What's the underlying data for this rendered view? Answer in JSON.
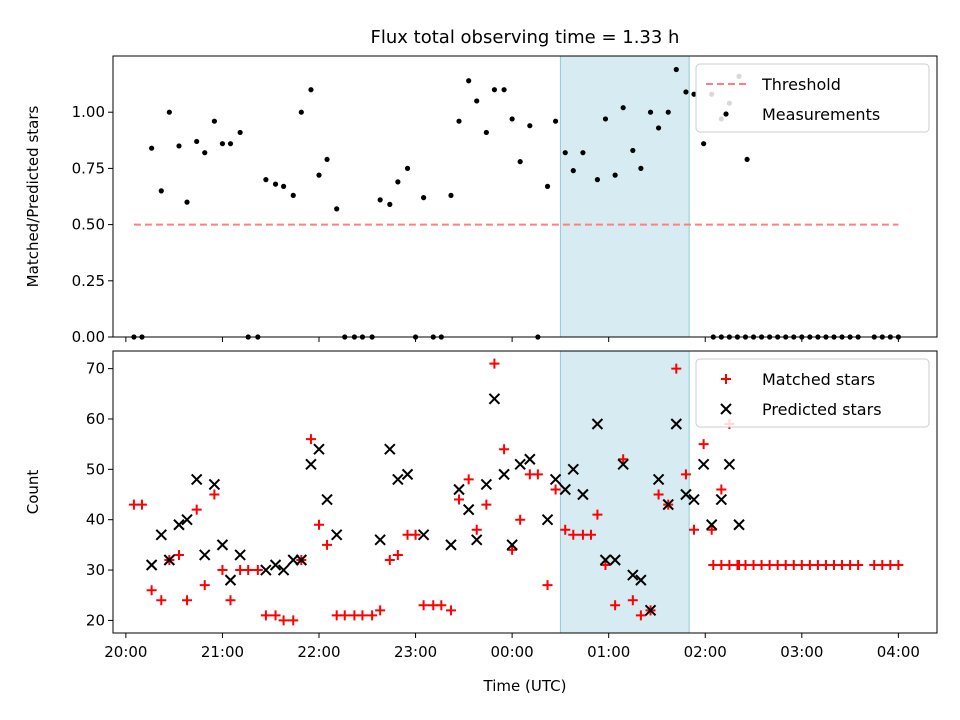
{
  "chart_data": [
    {
      "type": "scatter",
      "title": "Flux total observing time = 1.33 h",
      "xlabel": "",
      "ylabel": "Matched/Predicted stars",
      "xlim": [
        "19:52",
        "04:24"
      ],
      "ylim": [
        0,
        1.25
      ],
      "yticks": [
        "0.00",
        "0.25",
        "0.50",
        "0.75",
        "1.00"
      ],
      "highlight_span": [
        "00:30",
        "01:50"
      ],
      "legend": {
        "position": "top-right",
        "entries": [
          "Threshold",
          "Measurements"
        ]
      },
      "threshold": {
        "name": "Threshold",
        "color": "#ff7f7f",
        "y": 0.5,
        "x_start": "20:05",
        "x_end": "04:00"
      },
      "series": [
        {
          "name": "Measurements",
          "color": "#000000",
          "points": [
            [
              "20:05",
              0.0
            ],
            [
              "20:10",
              0.0
            ],
            [
              "20:16",
              0.84
            ],
            [
              "20:22",
              0.65
            ],
            [
              "20:27",
              1.0
            ],
            [
              "20:33",
              0.85
            ],
            [
              "20:38",
              0.6
            ],
            [
              "20:44",
              0.87
            ],
            [
              "20:49",
              0.82
            ],
            [
              "20:55",
              0.96
            ],
            [
              "21:00",
              0.86
            ],
            [
              "21:05",
              0.86
            ],
            [
              "21:11",
              0.91
            ],
            [
              "21:16",
              0.0
            ],
            [
              "21:22",
              0.0
            ],
            [
              "21:27",
              0.7
            ],
            [
              "21:33",
              0.68
            ],
            [
              "21:38",
              0.67
            ],
            [
              "21:44",
              0.63
            ],
            [
              "21:49",
              1.0
            ],
            [
              "21:55",
              1.1
            ],
            [
              "22:00",
              0.72
            ],
            [
              "22:05",
              0.79
            ],
            [
              "22:11",
              0.57
            ],
            [
              "22:16",
              0.0
            ],
            [
              "22:22",
              0.0
            ],
            [
              "22:27",
              0.0
            ],
            [
              "22:33",
              0.0
            ],
            [
              "22:38",
              0.61
            ],
            [
              "22:44",
              0.59
            ],
            [
              "22:49",
              0.69
            ],
            [
              "22:55",
              0.75
            ],
            [
              "23:00",
              0.0
            ],
            [
              "23:05",
              0.62
            ],
            [
              "23:11",
              0.0
            ],
            [
              "23:16",
              0.0
            ],
            [
              "23:22",
              0.63
            ],
            [
              "23:27",
              0.96
            ],
            [
              "23:33",
              1.14
            ],
            [
              "23:38",
              1.05
            ],
            [
              "23:44",
              0.91
            ],
            [
              "23:49",
              1.1
            ],
            [
              "23:55",
              1.1
            ],
            [
              "00:00",
              0.97
            ],
            [
              "00:05",
              0.78
            ],
            [
              "00:11",
              0.94
            ],
            [
              "00:16",
              0.0
            ],
            [
              "00:22",
              0.67
            ],
            [
              "00:27",
              0.96
            ],
            [
              "00:33",
              0.82
            ],
            [
              "00:38",
              0.74
            ],
            [
              "00:44",
              0.82
            ],
            [
              "00:53",
              0.7
            ],
            [
              "00:58",
              0.97
            ],
            [
              "01:04",
              0.72
            ],
            [
              "01:09",
              1.02
            ],
            [
              "01:15",
              0.83
            ],
            [
              "01:20",
              0.75
            ],
            [
              "01:26",
              1.0
            ],
            [
              "01:31",
              0.93
            ],
            [
              "01:37",
              1.0
            ],
            [
              "01:42",
              1.19
            ],
            [
              "01:48",
              1.09
            ],
            [
              "01:53",
              1.08
            ],
            [
              "01:59",
              0.86
            ],
            [
              "02:04",
              1.08
            ],
            [
              "02:10",
              0.97
            ],
            [
              "02:15",
              1.04
            ],
            [
              "02:21",
              1.16
            ],
            [
              "02:26",
              0.79
            ],
            [
              "02:05",
              0.0
            ],
            [
              "02:10",
              0.0
            ],
            [
              "02:15",
              0.0
            ],
            [
              "02:20",
              0.0
            ],
            [
              "02:25",
              0.0
            ],
            [
              "02:30",
              0.0
            ],
            [
              "02:35",
              0.0
            ],
            [
              "02:40",
              0.0
            ],
            [
              "02:45",
              0.0
            ],
            [
              "02:50",
              0.0
            ],
            [
              "02:55",
              0.0
            ],
            [
              "03:00",
              0.0
            ],
            [
              "03:05",
              0.0
            ],
            [
              "03:10",
              0.0
            ],
            [
              "03:15",
              0.0
            ],
            [
              "03:20",
              0.0
            ],
            [
              "03:25",
              0.0
            ],
            [
              "03:30",
              0.0
            ],
            [
              "03:35",
              0.0
            ],
            [
              "03:45",
              0.0
            ],
            [
              "03:50",
              0.0
            ],
            [
              "03:55",
              0.0
            ],
            [
              "04:00",
              0.0
            ]
          ]
        }
      ]
    },
    {
      "type": "scatter",
      "title": "",
      "xlabel": "Time (UTC)",
      "ylabel": "Count",
      "xlim": [
        "19:52",
        "04:24"
      ],
      "ylim": [
        17.5,
        73.5
      ],
      "yticks": [
        "20",
        "30",
        "40",
        "50",
        "60",
        "70"
      ],
      "xticks": [
        "20:00",
        "21:00",
        "22:00",
        "23:00",
        "00:00",
        "01:00",
        "02:00",
        "03:00",
        "04:00"
      ],
      "highlight_span": [
        "00:30",
        "01:50"
      ],
      "legend": {
        "position": "top-right",
        "entries": [
          "Matched stars",
          "Predicted stars"
        ]
      },
      "series": [
        {
          "name": "Matched stars",
          "marker": "plus",
          "color": "#ff0000",
          "points": [
            [
              "20:05",
              43
            ],
            [
              "20:10",
              43
            ],
            [
              "20:16",
              26
            ],
            [
              "20:22",
              24
            ],
            [
              "20:27",
              32
            ],
            [
              "20:33",
              33
            ],
            [
              "20:38",
              24
            ],
            [
              "20:44",
              42
            ],
            [
              "20:49",
              27
            ],
            [
              "20:55",
              45
            ],
            [
              "21:00",
              30
            ],
            [
              "21:05",
              24
            ],
            [
              "21:11",
              30
            ],
            [
              "21:16",
              30
            ],
            [
              "21:22",
              30
            ],
            [
              "21:27",
              21
            ],
            [
              "21:33",
              21
            ],
            [
              "21:38",
              20
            ],
            [
              "21:44",
              20
            ],
            [
              "21:49",
              32
            ],
            [
              "21:55",
              56
            ],
            [
              "22:00",
              39
            ],
            [
              "22:05",
              35
            ],
            [
              "22:11",
              21
            ],
            [
              "22:16",
              21
            ],
            [
              "22:22",
              21
            ],
            [
              "22:27",
              21
            ],
            [
              "22:33",
              21
            ],
            [
              "22:38",
              22
            ],
            [
              "22:44",
              32
            ],
            [
              "22:49",
              33
            ],
            [
              "22:55",
              37
            ],
            [
              "23:00",
              37
            ],
            [
              "23:05",
              23
            ],
            [
              "23:11",
              23
            ],
            [
              "23:16",
              23
            ],
            [
              "23:22",
              22
            ],
            [
              "23:27",
              44
            ],
            [
              "23:33",
              48
            ],
            [
              "23:38",
              38
            ],
            [
              "23:44",
              43
            ],
            [
              "23:49",
              71
            ],
            [
              "23:55",
              54
            ],
            [
              "00:00",
              34
            ],
            [
              "00:05",
              40
            ],
            [
              "00:11",
              49
            ],
            [
              "00:16",
              49
            ],
            [
              "00:22",
              27
            ],
            [
              "00:27",
              46
            ],
            [
              "00:33",
              38
            ],
            [
              "00:38",
              37
            ],
            [
              "00:44",
              37
            ],
            [
              "00:49",
              37
            ],
            [
              "00:53",
              41
            ],
            [
              "00:58",
              31
            ],
            [
              "01:04",
              23
            ],
            [
              "01:09",
              52
            ],
            [
              "01:15",
              24
            ],
            [
              "01:20",
              21
            ],
            [
              "01:26",
              22
            ],
            [
              "01:31",
              45
            ],
            [
              "01:37",
              43
            ],
            [
              "01:42",
              70
            ],
            [
              "01:48",
              49
            ],
            [
              "01:53",
              38
            ],
            [
              "01:59",
              55
            ],
            [
              "02:04",
              38
            ],
            [
              "02:10",
              46
            ],
            [
              "02:15",
              59
            ],
            [
              "02:21",
              31
            ],
            [
              "02:05",
              31
            ],
            [
              "02:10",
              31
            ],
            [
              "02:15",
              31
            ],
            [
              "02:20",
              31
            ],
            [
              "02:25",
              31
            ],
            [
              "02:30",
              31
            ],
            [
              "02:35",
              31
            ],
            [
              "02:40",
              31
            ],
            [
              "02:45",
              31
            ],
            [
              "02:50",
              31
            ],
            [
              "02:55",
              31
            ],
            [
              "03:00",
              31
            ],
            [
              "03:05",
              31
            ],
            [
              "03:10",
              31
            ],
            [
              "03:15",
              31
            ],
            [
              "03:20",
              31
            ],
            [
              "03:25",
              31
            ],
            [
              "03:30",
              31
            ],
            [
              "03:35",
              31
            ],
            [
              "03:45",
              31
            ],
            [
              "03:50",
              31
            ],
            [
              "03:55",
              31
            ],
            [
              "04:00",
              31
            ]
          ]
        },
        {
          "name": "Predicted stars",
          "marker": "x",
          "color": "#000000",
          "points": [
            [
              "20:16",
              31
            ],
            [
              "20:22",
              37
            ],
            [
              "20:27",
              32
            ],
            [
              "20:33",
              39
            ],
            [
              "20:38",
              40
            ],
            [
              "20:44",
              48
            ],
            [
              "20:49",
              33
            ],
            [
              "20:55",
              47
            ],
            [
              "21:00",
              35
            ],
            [
              "21:05",
              28
            ],
            [
              "21:11",
              33
            ],
            [
              "21:27",
              30
            ],
            [
              "21:33",
              31
            ],
            [
              "21:38",
              30
            ],
            [
              "21:44",
              32
            ],
            [
              "21:49",
              32
            ],
            [
              "21:55",
              51
            ],
            [
              "22:00",
              54
            ],
            [
              "22:05",
              44
            ],
            [
              "22:11",
              37
            ],
            [
              "22:38",
              36
            ],
            [
              "22:44",
              54
            ],
            [
              "22:49",
              48
            ],
            [
              "22:55",
              49
            ],
            [
              "23:05",
              37
            ],
            [
              "23:22",
              35
            ],
            [
              "23:27",
              46
            ],
            [
              "23:33",
              42
            ],
            [
              "23:38",
              36
            ],
            [
              "23:44",
              47
            ],
            [
              "23:49",
              64
            ],
            [
              "23:55",
              49
            ],
            [
              "00:00",
              35
            ],
            [
              "00:05",
              51
            ],
            [
              "00:11",
              52
            ],
            [
              "00:22",
              40
            ],
            [
              "00:27",
              48
            ],
            [
              "00:33",
              46
            ],
            [
              "00:38",
              50
            ],
            [
              "00:44",
              45
            ],
            [
              "00:53",
              59
            ],
            [
              "00:58",
              32
            ],
            [
              "01:04",
              32
            ],
            [
              "01:09",
              51
            ],
            [
              "01:15",
              29
            ],
            [
              "01:20",
              28
            ],
            [
              "01:26",
              22
            ],
            [
              "01:31",
              48
            ],
            [
              "01:37",
              43
            ],
            [
              "01:42",
              59
            ],
            [
              "01:48",
              45
            ],
            [
              "01:53",
              44
            ],
            [
              "01:59",
              51
            ],
            [
              "02:04",
              39
            ],
            [
              "02:10",
              44
            ],
            [
              "02:15",
              51
            ],
            [
              "02:21",
              39
            ]
          ]
        }
      ]
    }
  ]
}
